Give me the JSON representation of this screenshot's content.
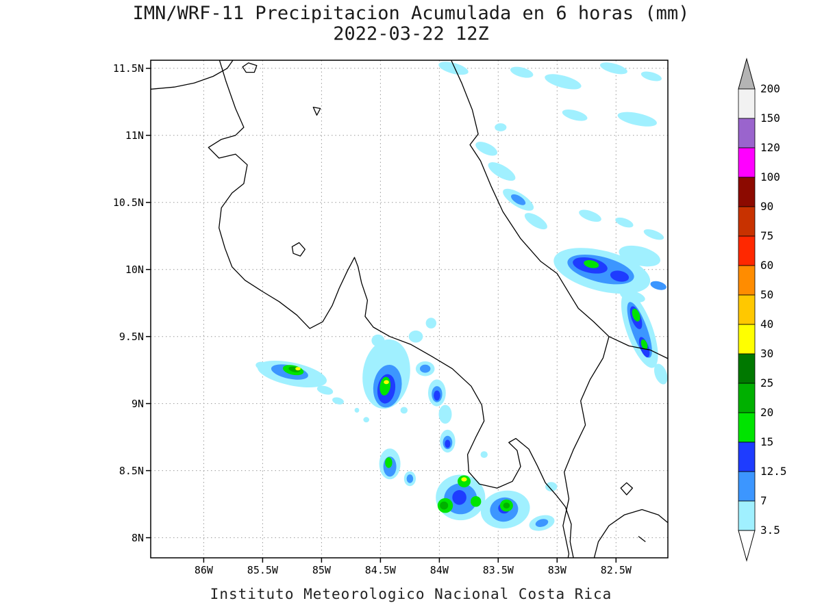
{
  "header": {
    "title": "IMN/WRF-11 Precipitacion Acumulada en 6 horas (mm)",
    "subtitle": "2022-03-22 12Z"
  },
  "footer": {
    "caption": "Instituto Meteorologico Nacional Costa Rica"
  },
  "axes": {
    "lat": [
      {
        "label": "11.5N",
        "deg": 11.5
      },
      {
        "label": "11N",
        "deg": 11.0
      },
      {
        "label": "10.5N",
        "deg": 10.5
      },
      {
        "label": "10N",
        "deg": 10.0
      },
      {
        "label": "9.5N",
        "deg": 9.5
      },
      {
        "label": "9N",
        "deg": 9.0
      },
      {
        "label": "8.5N",
        "deg": 8.5
      },
      {
        "label": "8N",
        "deg": 8.0
      }
    ],
    "lon": [
      {
        "label": "86W",
        "deg": 86.0
      },
      {
        "label": "85.5W",
        "deg": 85.5
      },
      {
        "label": "85W",
        "deg": 85.0
      },
      {
        "label": "84.5W",
        "deg": 84.5
      },
      {
        "label": "84W",
        "deg": 84.0
      },
      {
        "label": "83.5W",
        "deg": 83.5
      },
      {
        "label": "83W",
        "deg": 83.0
      },
      {
        "label": "82.5W",
        "deg": 82.5
      }
    ]
  },
  "colorbar": {
    "tick_labels": [
      "200",
      "150",
      "120",
      "100",
      "90",
      "75",
      "60",
      "50",
      "40",
      "30",
      "25",
      "20",
      "15",
      "12.5",
      "7",
      "3.5"
    ],
    "band_colors_top_to_bottom": [
      "#f2f2f2",
      "#9a64cd",
      "#ff00ff",
      "#8c0a00",
      "#c83200",
      "#ff2800",
      "#ff8c00",
      "#ffc800",
      "#ffff00",
      "#007800",
      "#00b000",
      "#00e400",
      "#1e3cff",
      "#3c96ff",
      "#a0f0ff"
    ],
    "over_color": "#b4b4b4",
    "under_color": "#ffffff"
  },
  "chart_data": {
    "type": "heatmap",
    "title": "IMN/WRF-11 Precipitacion Acumulada en 6 horas (mm)",
    "subtitle": "2022-03-22 12Z",
    "units": "mm",
    "levels_mm": [
      3.5,
      7,
      12.5,
      15,
      20,
      25,
      30,
      40,
      50,
      60,
      75,
      90,
      100,
      120,
      150,
      200
    ],
    "level_colors": {
      "3.5": "#a0f0ff",
      "7": "#3c96ff",
      "12.5": "#1e3cff",
      "15": "#00e400",
      "20": "#00b000",
      "25": "#007800",
      "30": "#ffff00"
    },
    "cell_format": [
      "lon_w_deg",
      "lat_n_deg",
      "rx_deg",
      "ry_deg",
      "rotation_deg",
      "level_mm"
    ],
    "cells": [
      [
        83.88,
        11.5,
        0.13,
        0.04,
        15,
        3.5
      ],
      [
        83.3,
        11.47,
        0.1,
        0.035,
        15,
        3.5
      ],
      [
        82.95,
        11.4,
        0.16,
        0.045,
        15,
        3.5
      ],
      [
        82.52,
        11.5,
        0.12,
        0.035,
        15,
        3.5
      ],
      [
        82.2,
        11.44,
        0.09,
        0.03,
        15,
        3.5
      ],
      [
        82.85,
        11.15,
        0.11,
        0.035,
        15,
        3.5
      ],
      [
        82.32,
        11.12,
        0.17,
        0.045,
        12,
        3.5
      ],
      [
        83.48,
        11.06,
        0.05,
        0.03,
        0,
        3.5
      ],
      [
        83.6,
        10.9,
        0.1,
        0.04,
        25,
        3.5
      ],
      [
        83.47,
        10.73,
        0.13,
        0.045,
        30,
        3.5
      ],
      [
        83.33,
        10.52,
        0.15,
        0.05,
        32,
        3.5
      ],
      [
        83.33,
        10.52,
        0.07,
        0.028,
        32,
        7
      ],
      [
        83.18,
        10.36,
        0.11,
        0.04,
        32,
        3.5
      ],
      [
        82.72,
        10.4,
        0.1,
        0.035,
        20,
        3.5
      ],
      [
        82.43,
        10.35,
        0.08,
        0.03,
        20,
        3.5
      ],
      [
        82.18,
        10.26,
        0.09,
        0.03,
        20,
        3.5
      ],
      [
        82.62,
        9.99,
        0.42,
        0.15,
        14,
        3.5
      ],
      [
        82.3,
        10.1,
        0.18,
        0.07,
        14,
        3.5
      ],
      [
        82.63,
        10.0,
        0.29,
        0.095,
        14,
        7
      ],
      [
        82.72,
        10.03,
        0.15,
        0.055,
        12,
        12.5
      ],
      [
        82.47,
        9.95,
        0.08,
        0.04,
        12,
        12.5
      ],
      [
        82.71,
        10.04,
        0.065,
        0.028,
        12,
        15
      ],
      [
        82.36,
        9.8,
        0.11,
        0.04,
        15,
        3.5
      ],
      [
        82.14,
        9.88,
        0.07,
        0.03,
        15,
        7
      ],
      [
        82.3,
        9.55,
        0.11,
        0.3,
        -20,
        3.5
      ],
      [
        82.3,
        9.55,
        0.065,
        0.22,
        -20,
        7
      ],
      [
        82.33,
        9.64,
        0.04,
        0.09,
        -20,
        12.5
      ],
      [
        82.26,
        9.42,
        0.035,
        0.08,
        -20,
        12.5
      ],
      [
        82.33,
        9.66,
        0.03,
        0.05,
        -20,
        15
      ],
      [
        82.26,
        9.44,
        0.025,
        0.04,
        -20,
        15
      ],
      [
        82.12,
        9.22,
        0.05,
        0.08,
        -20,
        3.5
      ],
      [
        85.25,
        9.22,
        0.3,
        0.085,
        12,
        3.5
      ],
      [
        85.27,
        9.235,
        0.16,
        0.05,
        12,
        7
      ],
      [
        85.24,
        9.25,
        0.09,
        0.035,
        12,
        15
      ],
      [
        85.23,
        9.255,
        0.05,
        0.02,
        12,
        20
      ],
      [
        85.2,
        9.26,
        0.022,
        0.013,
        0,
        30
      ],
      [
        85.5,
        9.28,
        0.06,
        0.03,
        12,
        3.5
      ],
      [
        84.97,
        9.1,
        0.07,
        0.03,
        15,
        3.5
      ],
      [
        84.86,
        9.02,
        0.05,
        0.025,
        15,
        3.5
      ],
      [
        84.45,
        9.22,
        0.2,
        0.26,
        8,
        3.5
      ],
      [
        84.44,
        9.13,
        0.12,
        0.16,
        8,
        7
      ],
      [
        84.45,
        9.11,
        0.075,
        0.11,
        8,
        12.5
      ],
      [
        84.46,
        9.13,
        0.045,
        0.07,
        8,
        15
      ],
      [
        84.45,
        9.16,
        0.022,
        0.015,
        0,
        30
      ],
      [
        84.52,
        9.47,
        0.055,
        0.045,
        0,
        3.5
      ],
      [
        84.35,
        9.4,
        0.045,
        0.04,
        0,
        3.5
      ],
      [
        84.2,
        9.5,
        0.06,
        0.045,
        0,
        3.5
      ],
      [
        84.07,
        9.6,
        0.045,
        0.04,
        0,
        3.5
      ],
      [
        84.12,
        9.26,
        0.08,
        0.055,
        0,
        3.5
      ],
      [
        84.12,
        9.26,
        0.045,
        0.03,
        0,
        7
      ],
      [
        84.02,
        9.08,
        0.075,
        0.1,
        0,
        3.5
      ],
      [
        84.02,
        9.07,
        0.045,
        0.06,
        0,
        7
      ],
      [
        84.02,
        9.06,
        0.028,
        0.038,
        0,
        12.5
      ],
      [
        83.95,
        8.92,
        0.055,
        0.07,
        0,
        3.5
      ],
      [
        83.93,
        8.72,
        0.065,
        0.085,
        0,
        3.5
      ],
      [
        83.93,
        8.71,
        0.04,
        0.05,
        0,
        7
      ],
      [
        83.93,
        8.7,
        0.024,
        0.03,
        0,
        12.5
      ],
      [
        84.3,
        8.95,
        0.03,
        0.025,
        0,
        3.5
      ],
      [
        84.62,
        8.88,
        0.025,
        0.02,
        0,
        3.5
      ],
      [
        84.7,
        8.95,
        0.02,
        0.018,
        0,
        3.5
      ],
      [
        84.42,
        8.55,
        0.09,
        0.115,
        0,
        3.5
      ],
      [
        84.42,
        8.53,
        0.055,
        0.075,
        0,
        7
      ],
      [
        84.43,
        8.56,
        0.03,
        0.04,
        0,
        15
      ],
      [
        84.25,
        8.44,
        0.05,
        0.055,
        0,
        3.5
      ],
      [
        84.25,
        8.44,
        0.028,
        0.032,
        0,
        7
      ],
      [
        83.82,
        8.3,
        0.21,
        0.17,
        0,
        3.5
      ],
      [
        83.44,
        8.21,
        0.21,
        0.14,
        -10,
        3.5
      ],
      [
        83.82,
        8.29,
        0.14,
        0.115,
        0,
        7
      ],
      [
        83.45,
        8.21,
        0.12,
        0.09,
        -10,
        7
      ],
      [
        83.83,
        8.3,
        0.06,
        0.055,
        0,
        12.5
      ],
      [
        83.45,
        8.22,
        0.05,
        0.04,
        0,
        12.5
      ],
      [
        83.95,
        8.24,
        0.065,
        0.055,
        0,
        15
      ],
      [
        83.96,
        8.24,
        0.035,
        0.03,
        0,
        20
      ],
      [
        83.79,
        8.42,
        0.055,
        0.045,
        0,
        15
      ],
      [
        83.79,
        8.435,
        0.024,
        0.016,
        0,
        30
      ],
      [
        83.69,
        8.27,
        0.045,
        0.04,
        0,
        15
      ],
      [
        83.43,
        8.24,
        0.055,
        0.045,
        0,
        15
      ],
      [
        83.43,
        8.24,
        0.028,
        0.022,
        0,
        20
      ],
      [
        83.13,
        8.11,
        0.11,
        0.055,
        -15,
        3.5
      ],
      [
        83.13,
        8.11,
        0.055,
        0.028,
        -15,
        7
      ],
      [
        83.05,
        8.38,
        0.05,
        0.035,
        0,
        3.5
      ],
      [
        83.62,
        8.62,
        0.03,
        0.025,
        0,
        3.5
      ]
    ]
  },
  "map": {
    "domain": {
      "lon_west": 86.45,
      "lon_east": 82.06,
      "lat_south": 7.85,
      "lat_north": 11.56
    },
    "coastlines": [
      {
        "closed": false,
        "points": [
          [
            85.72,
            11.6
          ],
          [
            85.8,
            11.5
          ],
          [
            85.92,
            11.44
          ],
          [
            86.08,
            11.39
          ],
          [
            86.25,
            11.36
          ],
          [
            86.5,
            11.34
          ]
        ]
      },
      {
        "closed": true,
        "points": [
          [
            85.62,
            11.54
          ],
          [
            85.55,
            11.52
          ],
          [
            85.57,
            11.47
          ],
          [
            85.64,
            11.47
          ],
          [
            85.67,
            11.51
          ]
        ]
      },
      {
        "closed": true,
        "points": [
          [
            85.07,
            11.21
          ],
          [
            85.01,
            11.2
          ],
          [
            85.04,
            11.15
          ]
        ]
      },
      {
        "closed": false,
        "points": [
          [
            85.88,
            11.6
          ],
          [
            85.81,
            11.4
          ],
          [
            85.73,
            11.2
          ],
          [
            85.66,
            11.06
          ],
          [
            85.73,
            11.0
          ],
          [
            85.85,
            10.97
          ],
          [
            85.96,
            10.91
          ],
          [
            85.87,
            10.83
          ],
          [
            85.73,
            10.86
          ],
          [
            85.63,
            10.78
          ],
          [
            85.66,
            10.64
          ],
          [
            85.76,
            10.57
          ],
          [
            85.85,
            10.46
          ],
          [
            85.87,
            10.31
          ],
          [
            85.82,
            10.16
          ],
          [
            85.76,
            10.02
          ],
          [
            85.65,
            9.92
          ],
          [
            85.51,
            9.84
          ],
          [
            85.36,
            9.76
          ],
          [
            85.21,
            9.66
          ],
          [
            85.1,
            9.56
          ],
          [
            84.99,
            9.61
          ],
          [
            84.91,
            9.73
          ],
          [
            84.85,
            9.86
          ],
          [
            84.78,
            9.99
          ],
          [
            84.72,
            10.09
          ],
          [
            84.69,
            10.02
          ],
          [
            84.66,
            9.9
          ],
          [
            84.61,
            9.77
          ],
          [
            84.63,
            9.65
          ],
          [
            84.56,
            9.57
          ],
          [
            84.42,
            9.5
          ],
          [
            84.24,
            9.44
          ],
          [
            84.06,
            9.35
          ],
          [
            83.89,
            9.26
          ],
          [
            83.73,
            9.13
          ],
          [
            83.64,
            8.99
          ],
          [
            83.62,
            8.87
          ],
          [
            83.69,
            8.75
          ],
          [
            83.76,
            8.62
          ],
          [
            83.75,
            8.49
          ],
          [
            83.66,
            8.4
          ],
          [
            83.51,
            8.37
          ],
          [
            83.38,
            8.42
          ],
          [
            83.31,
            8.53
          ],
          [
            83.34,
            8.65
          ],
          [
            83.41,
            8.71
          ],
          [
            83.35,
            8.74
          ],
          [
            83.24,
            8.66
          ],
          [
            83.17,
            8.54
          ],
          [
            83.1,
            8.41
          ],
          [
            83.01,
            8.32
          ],
          [
            82.93,
            8.23
          ],
          [
            82.88,
            8.1
          ],
          [
            82.89,
            7.97
          ],
          [
            82.85,
            7.8
          ]
        ]
      },
      {
        "closed": false,
        "points": [
          [
            83.92,
            11.6
          ],
          [
            83.81,
            11.39
          ],
          [
            83.72,
            11.19
          ],
          [
            83.67,
            11.01
          ],
          [
            83.74,
            10.93
          ],
          [
            83.65,
            10.81
          ],
          [
            83.56,
            10.62
          ],
          [
            83.46,
            10.43
          ],
          [
            83.31,
            10.23
          ],
          [
            83.14,
            10.06
          ],
          [
            83.0,
            9.97
          ],
          [
            82.89,
            9.81
          ],
          [
            82.82,
            9.71
          ],
          [
            82.69,
            9.61
          ],
          [
            82.56,
            9.5
          ],
          [
            82.39,
            9.43
          ],
          [
            82.21,
            9.4
          ],
          [
            82.0,
            9.31
          ]
        ]
      },
      {
        "closed": false,
        "points": [
          [
            82.56,
            9.5
          ],
          [
            82.61,
            9.34
          ],
          [
            82.72,
            9.18
          ],
          [
            82.8,
            9.02
          ],
          [
            82.76,
            8.84
          ],
          [
            82.86,
            8.66
          ],
          [
            82.94,
            8.49
          ],
          [
            82.9,
            8.29
          ],
          [
            82.95,
            8.09
          ],
          [
            82.9,
            7.88
          ],
          [
            82.92,
            7.8
          ]
        ]
      },
      {
        "closed": false,
        "points": [
          [
            82.7,
            7.8
          ],
          [
            82.65,
            7.97
          ],
          [
            82.56,
            8.09
          ],
          [
            82.43,
            8.17
          ],
          [
            82.28,
            8.21
          ],
          [
            82.14,
            8.17
          ],
          [
            82.03,
            8.09
          ],
          [
            81.95,
            8.04
          ]
        ]
      },
      {
        "closed": true,
        "points": [
          [
            82.46,
            8.37
          ],
          [
            82.41,
            8.41
          ],
          [
            82.36,
            8.37
          ],
          [
            82.41,
            8.32
          ]
        ]
      },
      {
        "closed": false,
        "points": [
          [
            82.31,
            8.01
          ],
          [
            82.25,
            7.97
          ]
        ]
      },
      {
        "closed": true,
        "points": [
          [
            85.25,
            10.17
          ],
          [
            85.19,
            10.2
          ],
          [
            85.14,
            10.15
          ],
          [
            85.18,
            10.1
          ],
          [
            85.24,
            10.12
          ]
        ]
      }
    ]
  }
}
